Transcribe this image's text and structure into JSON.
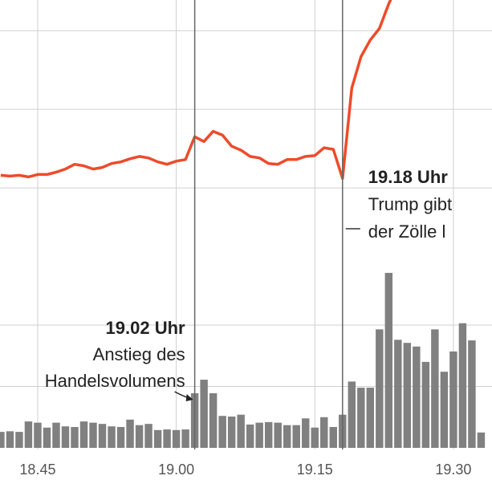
{
  "chart_data": [
    {
      "type": "line",
      "color": "#ee4b2b",
      "x": [
        1121,
        1122,
        1123,
        1124,
        1125,
        1126,
        1127,
        1128,
        1129,
        1130,
        1131,
        1132,
        1133,
        1134,
        1135,
        1136,
        1137,
        1138,
        1139,
        1140,
        1141,
        1142,
        1143,
        1144,
        1145,
        1146,
        1147,
        1148,
        1149,
        1150,
        1151,
        1152,
        1153,
        1154,
        1155,
        1156,
        1157,
        1158,
        1159,
        1160,
        1161,
        1162,
        1163,
        1164
      ],
      "values": [
        1.16,
        1.15,
        1.16,
        1.14,
        1.17,
        1.17,
        1.2,
        1.24,
        1.3,
        1.28,
        1.24,
        1.26,
        1.31,
        1.33,
        1.37,
        1.4,
        1.38,
        1.33,
        1.3,
        1.34,
        1.36,
        1.65,
        1.59,
        1.72,
        1.67,
        1.53,
        1.48,
        1.4,
        1.38,
        1.31,
        1.3,
        1.36,
        1.36,
        1.4,
        1.41,
        1.51,
        1.49,
        1.12,
        2.27,
        2.67,
        2.88,
        3.03,
        3.34,
        3.59
      ],
      "xlim": [
        1120.92,
        1174.18
      ],
      "ylim": [
        0,
        3.39
      ],
      "yticks": [
        1,
        2,
        3
      ],
      "grid": true,
      "annotations": [
        {
          "x": 1158,
          "lines": [
            "19.18 Uhr",
            "Trump gibt",
            "der Zölle l"
          ]
        }
      ]
    },
    {
      "type": "bar",
      "color": "#808080",
      "x": [
        1121,
        1122,
        1123,
        1124,
        1125,
        1126,
        1127,
        1128,
        1129,
        1130,
        1131,
        1132,
        1133,
        1134,
        1135,
        1136,
        1137,
        1138,
        1139,
        1140,
        1141,
        1142,
        1143,
        1144,
        1145,
        1146,
        1147,
        1148,
        1149,
        1150,
        1151,
        1152,
        1153,
        1154,
        1155,
        1156,
        1157,
        1158,
        1159,
        1160,
        1161,
        1162,
        1163,
        1164,
        1165,
        1166,
        1167,
        1168,
        1169,
        1170,
        1171,
        1172,
        1173
      ],
      "values": [
        0.26,
        0.27,
        0.26,
        0.43,
        0.41,
        0.33,
        0.41,
        0.35,
        0.34,
        0.43,
        0.41,
        0.39,
        0.35,
        0.34,
        0.46,
        0.37,
        0.39,
        0.29,
        0.3,
        0.29,
        0.3,
        0.89,
        1.11,
        0.89,
        0.52,
        0.51,
        0.54,
        0.38,
        0.41,
        0.42,
        0.41,
        0.37,
        0.37,
        0.48,
        0.33,
        0.5,
        0.34,
        0.54,
        1.08,
        0.98,
        0.98,
        1.93,
        2.85,
        1.76,
        1.71,
        1.65,
        1.4,
        1.93,
        1.24,
        1.57,
        2.03,
        1.75,
        0.25
      ],
      "xlim": [
        1120.92,
        1174.18
      ],
      "ylim": [
        0,
        3
      ],
      "yticks": [
        1,
        2
      ],
      "grid": true,
      "xticks": [
        {
          "value": 1125,
          "label": "18.45"
        },
        {
          "value": 1140,
          "label": "19.00"
        },
        {
          "value": 1155,
          "label": "19.15"
        },
        {
          "value": 1170,
          "label": "19.30"
        }
      ],
      "annotations": [
        {
          "x": 1142,
          "lines": [
            "19.02 Uhr",
            "Anstieg des",
            "Handelsvolumens"
          ]
        }
      ]
    }
  ]
}
